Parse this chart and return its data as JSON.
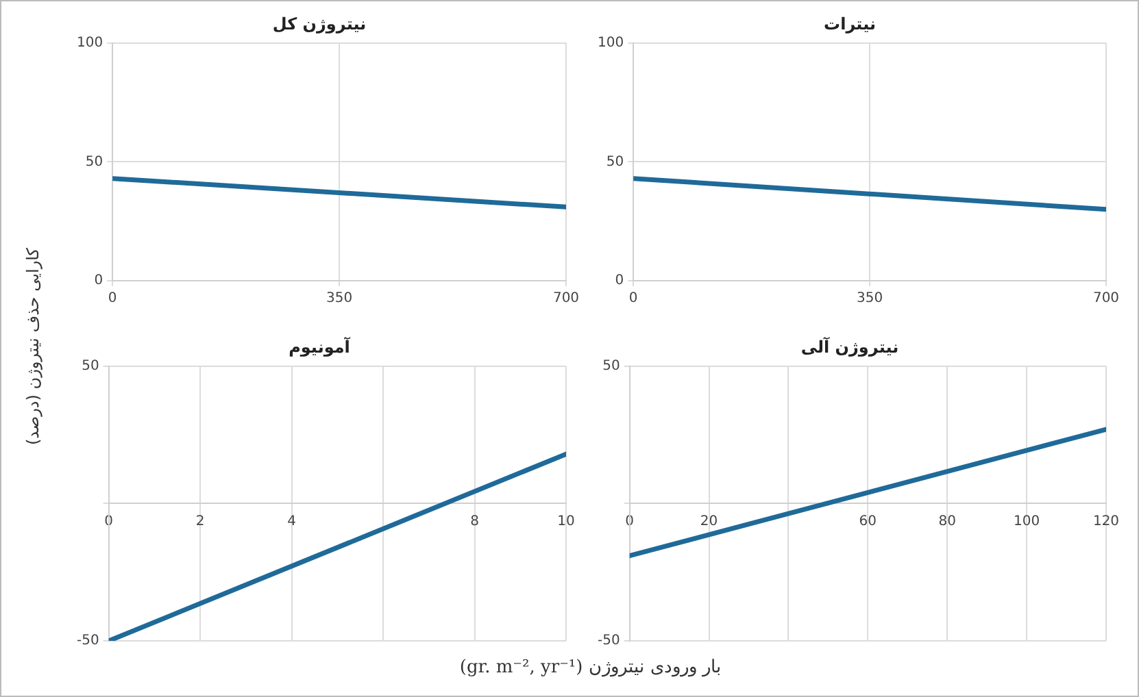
{
  "chart_data": [
    {
      "type": "line",
      "title": "نیتروژن کل",
      "ylabel": "کارایی حذف نیتروژن (درصد)",
      "x": [
        0,
        700
      ],
      "series": [
        {
          "color": "#1f6a99",
          "values": [
            43,
            31
          ]
        }
      ],
      "xlim": [
        0,
        700
      ],
      "xticks": [
        0,
        350,
        700
      ],
      "ylim": [
        0,
        100
      ],
      "yticks": [
        0,
        50,
        100
      ],
      "grid": true,
      "legend": false,
      "marker": "none",
      "line_style": "solid"
    },
    {
      "type": "line",
      "title": "نیترات",
      "x": [
        0,
        700
      ],
      "series": [
        {
          "color": "#1f6a99",
          "values": [
            43,
            30
          ]
        }
      ],
      "xlim": [
        0,
        700
      ],
      "xticks": [
        0,
        350,
        700
      ],
      "ylim": [
        0,
        100
      ],
      "yticks": [
        0,
        50,
        100
      ],
      "grid": true,
      "legend": false,
      "marker": "none",
      "line_style": "solid"
    },
    {
      "type": "line",
      "title": "آمونیوم",
      "x": [
        0,
        10
      ],
      "series": [
        {
          "color": "#1f6a99",
          "values": [
            -50,
            18
          ]
        }
      ],
      "xlim": [
        0,
        10
      ],
      "xticks": [
        0,
        2,
        4,
        {
          "value": 6,
          "label": null
        },
        8,
        10
      ],
      "ylim": [
        -50,
        50
      ],
      "yticks": [
        -50,
        {
          "value": 0,
          "label": null
        },
        50
      ],
      "grid": true,
      "legend": false,
      "marker": "none",
      "line_style": "solid"
    },
    {
      "type": "line",
      "title": "نیتروژن آلی",
      "xlabel": "بار ورودی نیتروژن (gr. m⁻², yr⁻¹)",
      "x": [
        0,
        120
      ],
      "series": [
        {
          "color": "#1f6a99",
          "values": [
            -19,
            27
          ]
        }
      ],
      "xlim": [
        0,
        120
      ],
      "xticks": [
        0,
        20,
        {
          "value": 40,
          "label": null
        },
        60,
        80,
        100,
        120
      ],
      "ylim": [
        -50,
        50
      ],
      "yticks": [
        -50,
        {
          "value": 0,
          "label": null
        },
        50
      ],
      "grid": true,
      "legend": false,
      "marker": "none",
      "line_style": "solid"
    }
  ]
}
